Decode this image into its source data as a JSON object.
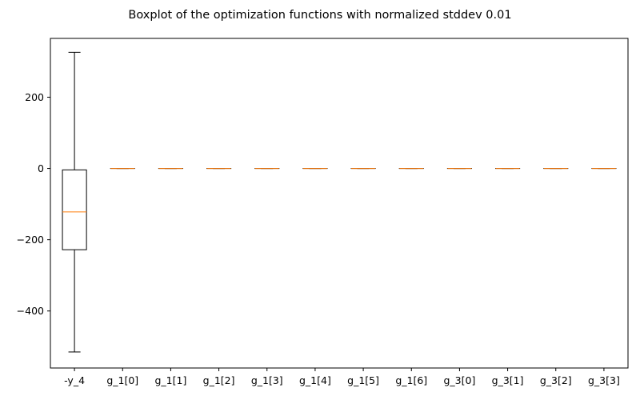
{
  "chart_data": {
    "type": "boxplot",
    "title": "Boxplot of the optimization functions with normalized stddev 0.01",
    "xlabel": "",
    "ylabel": "",
    "ylim": [
      -560,
      365
    ],
    "yticks": [
      200,
      0,
      -200,
      -400
    ],
    "grid": false,
    "median_color": "#ff7f0e",
    "box_color": "#000000",
    "categories": [
      "-y_4",
      "g_1[0]",
      "g_1[1]",
      "g_1[2]",
      "g_1[3]",
      "g_1[4]",
      "g_1[5]",
      "g_1[6]",
      "g_3[0]",
      "g_3[1]",
      "g_3[2]",
      "g_3[3]"
    ],
    "boxes": [
      {
        "label": "-y_4",
        "whisker_low": -515,
        "q1": -228,
        "median": -122,
        "q3": -4,
        "whisker_high": 326
      },
      {
        "label": "g_1[0]",
        "whisker_low": 0,
        "q1": 0,
        "median": 0,
        "q3": 0,
        "whisker_high": 0
      },
      {
        "label": "g_1[1]",
        "whisker_low": 0,
        "q1": 0,
        "median": 0,
        "q3": 0,
        "whisker_high": 0
      },
      {
        "label": "g_1[2]",
        "whisker_low": 0,
        "q1": 0,
        "median": 0,
        "q3": 0,
        "whisker_high": 0
      },
      {
        "label": "g_1[3]",
        "whisker_low": 0,
        "q1": 0,
        "median": 0,
        "q3": 0,
        "whisker_high": 0
      },
      {
        "label": "g_1[4]",
        "whisker_low": 0,
        "q1": 0,
        "median": 0,
        "q3": 0,
        "whisker_high": 0
      },
      {
        "label": "g_1[5]",
        "whisker_low": 0,
        "q1": 0,
        "median": 0,
        "q3": 0,
        "whisker_high": 0
      },
      {
        "label": "g_1[6]",
        "whisker_low": 0,
        "q1": 0,
        "median": 0,
        "q3": 0,
        "whisker_high": 0
      },
      {
        "label": "g_3[0]",
        "whisker_low": 0,
        "q1": 0,
        "median": 0,
        "q3": 0,
        "whisker_high": 0
      },
      {
        "label": "g_3[1]",
        "whisker_low": 0,
        "q1": 0,
        "median": 0,
        "q3": 0,
        "whisker_high": 0
      },
      {
        "label": "g_3[2]",
        "whisker_low": 0,
        "q1": 0,
        "median": 0,
        "q3": 0,
        "whisker_high": 0
      },
      {
        "label": "g_3[3]",
        "whisker_low": 0,
        "q1": 0,
        "median": 0,
        "q3": 0,
        "whisker_high": 0
      }
    ]
  }
}
